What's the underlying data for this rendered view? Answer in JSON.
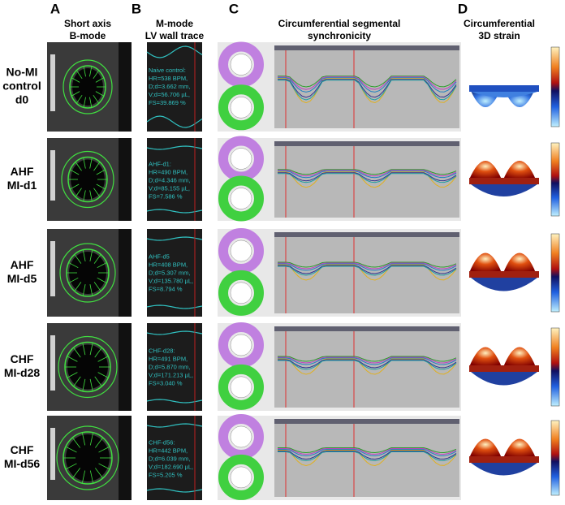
{
  "panels": [
    {
      "letter": "A",
      "title": [
        "Short axis",
        "B-mode"
      ]
    },
    {
      "letter": "B",
      "title": [
        "M-mode",
        "LV wall trace"
      ]
    },
    {
      "letter": "C",
      "title": [
        "Circumferential segmental",
        "synchronicity"
      ]
    },
    {
      "letter": "D",
      "title": [
        "Circumferential",
        "3D strain"
      ]
    }
  ],
  "rows": [
    {
      "label": [
        "No-MI",
        "control",
        "d0"
      ],
      "mmode_text": [
        "Naive control:",
        "HR=538 BPM,",
        "D;d=3.662 mm,",
        "V;d=56.706 µL,",
        "FS=39.869 %"
      ]
    },
    {
      "label": [
        "AHF",
        "MI-d1"
      ],
      "mmode_text": [
        "AHF-d1:",
        "HR=490 BPM,",
        "D;d=4.346 mm,",
        "V;d=85.155 µL,",
        "FS=7.586 %"
      ]
    },
    {
      "label": [
        "AHF",
        "MI-d5"
      ],
      "mmode_text": [
        "AHF-d5",
        "HR=408 BPM,",
        "D;d=5.307 mm,",
        "V;d=135.780 µL,",
        "FS=8.794 %"
      ]
    },
    {
      "label": [
        "CHF",
        "MI-d28"
      ],
      "mmode_text": [
        "CHF-d28:",
        "HR=491 BPM,",
        "D;d=5.870 mm,",
        "V;d=171.213 µL,",
        "FS=3.040 %"
      ]
    },
    {
      "label": [
        "CHF",
        "MI-d56"
      ],
      "mmode_text": [
        "CHF-d56:",
        "HR=442 BPM,",
        "D;d=6.039 mm,",
        "V;d=182.690 µL,",
        "FS=5.205 %"
      ]
    }
  ]
}
